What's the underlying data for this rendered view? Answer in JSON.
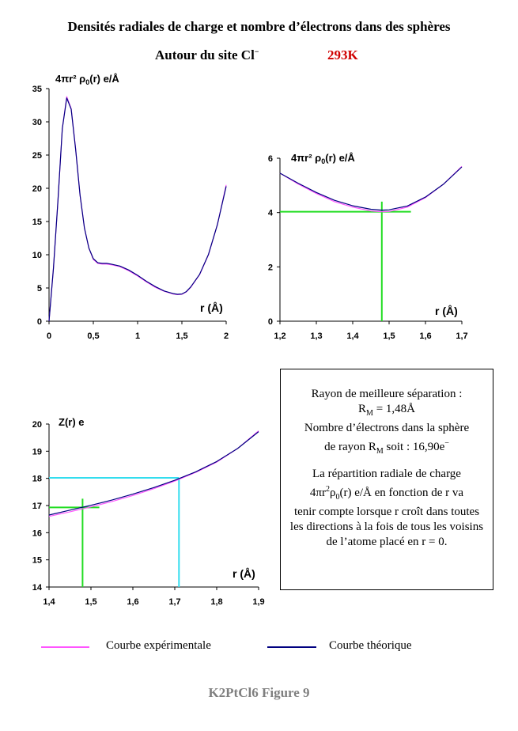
{
  "header": {
    "title": "Densités radiales de charge et nombre d’électrons dans des sphères",
    "subtitle_prefix": "Autour du site Cl",
    "subtitle_charge": "−",
    "temperature": "293K"
  },
  "info": {
    "line1": "Rayon de meilleure séparation :",
    "rm_symbol": "R",
    "rm_sub": "M",
    "rm_value": " = 1,48Å",
    "electrons_line": "Nombre d’électrons dans la sphère",
    "radius_prefix": "de rayon R",
    "radius_sub": "M",
    "radius_value": " soit : 16,90e",
    "radius_charge": "−",
    "desc_1": "La répartition radiale de charge",
    "desc_2a": "4πr",
    "desc_2sup": "2",
    "desc_2b": "ρ",
    "desc_2sub": "0",
    "desc_2c": "(r) e/Å en fonction de r va",
    "desc_3": "tenir compte lorsque r croît dans toutes les directions à la fois de tous les voisins de l’atome placé en r = 0."
  },
  "legend": {
    "experimental": "Courbe expérimentale",
    "theoretical": "Courbe théorique"
  },
  "footer": "K2PtCl6 Figure 9",
  "colors": {
    "experimental": "#ff55ff",
    "theoretical": "#000080",
    "marker_green": "#22dd22",
    "marker_cyan": "#33ddee"
  },
  "chart_data": [
    {
      "type": "line",
      "ylabel": "4πr² ρ0(r) e/Å",
      "xlabel": "r (Å)",
      "xlim": [
        0,
        2
      ],
      "ylim": [
        0,
        35
      ],
      "xticks": [
        0,
        0.5,
        1,
        1.5,
        2
      ],
      "xtick_labels": [
        "0",
        "0,5",
        "1",
        "1,5",
        "2"
      ],
      "yticks": [
        0,
        5,
        10,
        15,
        20,
        25,
        30,
        35
      ],
      "ytick_labels": [
        "0",
        "5",
        "10",
        "15",
        "20",
        "25",
        "30",
        "35"
      ],
      "series": [
        {
          "x": [
            0,
            0.05,
            0.1,
            0.15,
            0.2,
            0.25,
            0.3,
            0.35,
            0.4,
            0.45,
            0.5,
            0.55,
            0.6,
            0.65,
            0.7,
            0.8,
            0.9,
            1.0,
            1.1,
            1.2,
            1.3,
            1.4,
            1.45,
            1.5,
            1.55,
            1.6,
            1.7,
            1.8,
            1.9,
            2.0
          ],
          "y": [
            0,
            8,
            18,
            29,
            33.8,
            32,
            26,
            19,
            14,
            11,
            9.3,
            8.7,
            8.6,
            8.6,
            8.5,
            8.2,
            7.6,
            6.8,
            5.9,
            5.1,
            4.5,
            4.1,
            4.0,
            4.05,
            4.4,
            5.1,
            7.0,
            10,
            14.5,
            20.5
          ]
        },
        {
          "x": [
            0,
            0.05,
            0.1,
            0.15,
            0.2,
            0.25,
            0.3,
            0.35,
            0.4,
            0.45,
            0.5,
            0.55,
            0.6,
            0.65,
            0.7,
            0.8,
            0.9,
            1.0,
            1.1,
            1.2,
            1.3,
            1.4,
            1.45,
            1.5,
            1.55,
            1.6,
            1.7,
            1.8,
            1.9,
            2.0
          ],
          "y": [
            0,
            8,
            18,
            29,
            33.6,
            31.9,
            25.9,
            19,
            14,
            11,
            9.4,
            8.8,
            8.7,
            8.7,
            8.6,
            8.3,
            7.7,
            6.9,
            6.0,
            5.2,
            4.55,
            4.15,
            4.05,
            4.1,
            4.45,
            5.15,
            7.05,
            10.05,
            14.5,
            20.3
          ]
        }
      ]
    },
    {
      "type": "line",
      "ylabel": "4πr² ρ0(r) e/Å",
      "xlabel": "r (Å)",
      "xlim": [
        1.2,
        1.7
      ],
      "ylim": [
        0,
        6
      ],
      "xticks": [
        1.2,
        1.3,
        1.4,
        1.5,
        1.6,
        1.7
      ],
      "xtick_labels": [
        "1,2",
        "1,3",
        "1,4",
        "1,5",
        "1,6",
        "1,7"
      ],
      "yticks": [
        0,
        2,
        4,
        6
      ],
      "ytick_labels": [
        "0",
        "2",
        "4",
        "6"
      ],
      "series": [
        {
          "x": [
            1.2,
            1.25,
            1.3,
            1.35,
            1.4,
            1.45,
            1.48,
            1.5,
            1.55,
            1.6,
            1.65,
            1.7
          ],
          "y": [
            5.45,
            5.05,
            4.7,
            4.4,
            4.2,
            4.06,
            4.03,
            4.04,
            4.2,
            4.55,
            5.05,
            5.7
          ]
        },
        {
          "x": [
            1.2,
            1.25,
            1.3,
            1.35,
            1.4,
            1.45,
            1.48,
            1.5,
            1.55,
            1.6,
            1.65,
            1.7
          ],
          "y": [
            5.45,
            5.08,
            4.74,
            4.45,
            4.25,
            4.12,
            4.09,
            4.1,
            4.24,
            4.57,
            5.05,
            5.68
          ]
        }
      ],
      "marker_lines": [
        {
          "type": "horizontal",
          "y": 4.03,
          "x_from": 1.2,
          "x_to": 1.56
        },
        {
          "type": "vertical",
          "x": 1.48,
          "y_from": 0,
          "y_to": 4.4
        }
      ]
    },
    {
      "type": "line",
      "ylabel": "Z(r) e",
      "xlabel": "r (Å)",
      "xlim": [
        1.4,
        1.9
      ],
      "ylim": [
        14,
        20
      ],
      "xticks": [
        1.4,
        1.5,
        1.6,
        1.7,
        1.8,
        1.9
      ],
      "xtick_labels": [
        "1,4",
        "1,5",
        "1,6",
        "1,7",
        "1,8",
        "1,9"
      ],
      "yticks": [
        14,
        15,
        16,
        17,
        18,
        19,
        20
      ],
      "ytick_labels": [
        "14",
        "15",
        "16",
        "17",
        "18",
        "19",
        "20"
      ],
      "series": [
        {
          "x": [
            1.4,
            1.45,
            1.5,
            1.55,
            1.6,
            1.65,
            1.7,
            1.75,
            1.8,
            1.85,
            1.9
          ],
          "y": [
            16.6,
            16.77,
            16.95,
            17.15,
            17.37,
            17.62,
            17.9,
            18.22,
            18.6,
            19.1,
            19.75
          ]
        },
        {
          "x": [
            1.4,
            1.45,
            1.5,
            1.55,
            1.6,
            1.65,
            1.7,
            1.75,
            1.8,
            1.85,
            1.9
          ],
          "y": [
            16.65,
            16.83,
            17.01,
            17.2,
            17.42,
            17.66,
            17.93,
            18.24,
            18.62,
            19.1,
            19.72
          ]
        }
      ],
      "marker_lines": [
        {
          "type": "horizontal",
          "color": "green",
          "y": 16.93,
          "x_from": 1.4,
          "x_to": 1.52
        },
        {
          "type": "vertical",
          "color": "green",
          "x": 1.48,
          "y_from": 14,
          "y_to": 17.25
        },
        {
          "type": "horizontal",
          "color": "cyan",
          "y": 18.02,
          "x_from": 1.4,
          "x_to": 1.71
        },
        {
          "type": "vertical",
          "color": "cyan",
          "x": 1.71,
          "y_from": 14,
          "y_to": 18.02
        }
      ]
    }
  ]
}
